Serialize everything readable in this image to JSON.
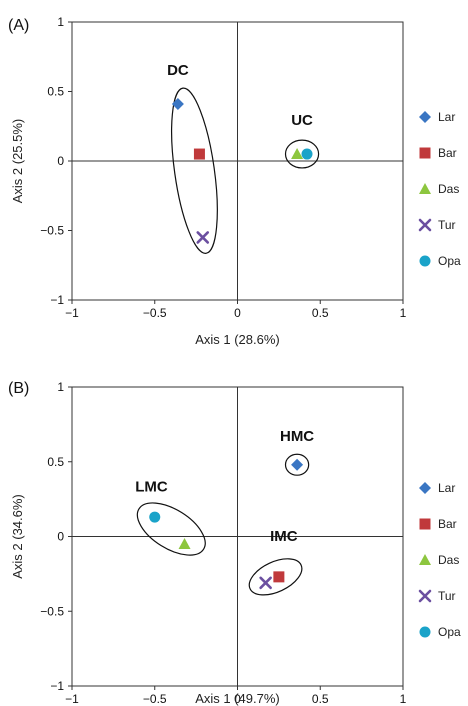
{
  "chart_data": [
    {
      "type": "scatter",
      "panel": "(A)",
      "xlabel": "Axis 1 (28.6%)",
      "ylabel": "Axis 2 (25.5%)",
      "xlim": [
        -1,
        1
      ],
      "ylim": [
        -1,
        1
      ],
      "xticks": [
        "−1",
        "−0.5",
        "0",
        "0.5",
        "1"
      ],
      "yticks": [
        "1",
        "0.5",
        "0",
        "−0.5",
        "−1"
      ],
      "legend_position": "right",
      "series": [
        {
          "name": "Lar",
          "x": -0.36,
          "y": 0.41,
          "marker": "diamond",
          "color": "#3a76c3"
        },
        {
          "name": "Bar",
          "x": -0.23,
          "y": 0.05,
          "marker": "square",
          "color": "#c0393b"
        },
        {
          "name": "Das",
          "x": 0.36,
          "y": 0.05,
          "marker": "triangle",
          "color": "#8dc63f"
        },
        {
          "name": "Tur",
          "x": -0.21,
          "y": -0.55,
          "marker": "x",
          "color": "#6b4fa0"
        },
        {
          "name": "Opa",
          "x": 0.42,
          "y": 0.05,
          "marker": "circle",
          "color": "#1aa3c9"
        }
      ],
      "clusters": [
        {
          "label": "DC",
          "cx": -0.26,
          "cy": -0.07,
          "rx": 0.12,
          "ry": 0.6,
          "rotate": -8,
          "lx": -0.36,
          "ly": 0.62
        },
        {
          "label": "UC",
          "cx": 0.39,
          "cy": 0.05,
          "rx": 0.1,
          "ry": 0.1,
          "rotate": 0,
          "lx": 0.39,
          "ly": 0.26
        }
      ]
    },
    {
      "type": "scatter",
      "panel": "(B)",
      "xlabel": "Axis 1 (49.7%)",
      "ylabel": "Axis 2 (34.6%)",
      "xlim": [
        -1,
        1
      ],
      "ylim": [
        -1,
        1
      ],
      "xticks": [
        "−1",
        "−0.5",
        "0",
        "0.5",
        "1"
      ],
      "yticks": [
        "1",
        "0.5",
        "0",
        "−0.5",
        "−1"
      ],
      "legend_position": "right",
      "series": [
        {
          "name": "Lar",
          "x": 0.36,
          "y": 0.48,
          "marker": "diamond",
          "color": "#3a76c3"
        },
        {
          "name": "Bar",
          "x": 0.25,
          "y": -0.27,
          "marker": "square",
          "color": "#c0393b"
        },
        {
          "name": "Das",
          "x": -0.32,
          "y": -0.05,
          "marker": "triangle",
          "color": "#8dc63f"
        },
        {
          "name": "Tur",
          "x": 0.17,
          "y": -0.31,
          "marker": "x",
          "color": "#6b4fa0"
        },
        {
          "name": "Opa",
          "x": -0.5,
          "y": 0.13,
          "marker": "circle",
          "color": "#1aa3c9"
        }
      ],
      "clusters": [
        {
          "label": "LMC",
          "cx": -0.4,
          "cy": 0.05,
          "rx": 0.23,
          "ry": 0.13,
          "rotate": 32,
          "lx": -0.52,
          "ly": 0.3
        },
        {
          "label": "HMC",
          "cx": 0.36,
          "cy": 0.48,
          "rx": 0.07,
          "ry": 0.07,
          "rotate": 0,
          "lx": 0.36,
          "ly": 0.64
        },
        {
          "label": "IMC",
          "cx": 0.23,
          "cy": -0.27,
          "rx": 0.17,
          "ry": 0.1,
          "rotate": -25,
          "lx": 0.28,
          "ly": -0.03
        }
      ]
    }
  ]
}
